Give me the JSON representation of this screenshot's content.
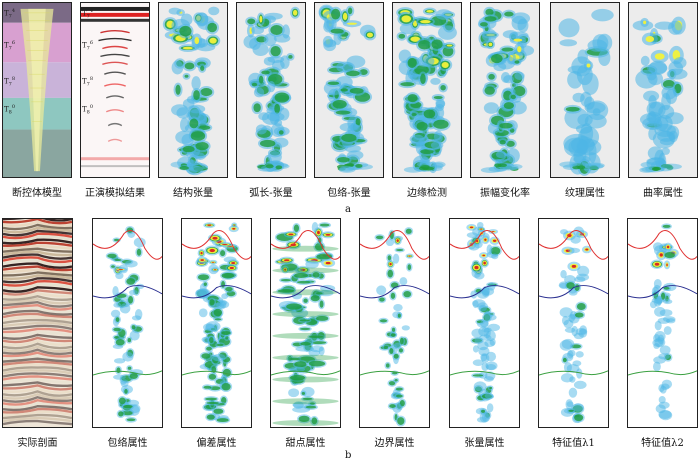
{
  "row_a": {
    "caption": "a",
    "panels": [
      {
        "id": "fault-model",
        "label": "断控体模型"
      },
      {
        "id": "forward-sim",
        "label": "正演模拟结果"
      },
      {
        "id": "structure-tensor",
        "label": "结构张量"
      },
      {
        "id": "arc-tensor",
        "label": "弧长-张量"
      },
      {
        "id": "envelope-tensor",
        "label": "包络-张量"
      },
      {
        "id": "edge-detect",
        "label": "边缘检测"
      },
      {
        "id": "amp-change",
        "label": "振幅变化率"
      },
      {
        "id": "texture",
        "label": "纹理属性"
      },
      {
        "id": "curvature",
        "label": "曲率属性"
      }
    ],
    "horizon_labels": [
      "T74",
      "T76",
      "T78",
      "T80"
    ]
  },
  "row_b": {
    "caption": "b",
    "panels": [
      {
        "id": "real-section",
        "label": "实际剖面"
      },
      {
        "id": "envelope-attr",
        "label": "包络属性"
      },
      {
        "id": "deviation-attr",
        "label": "偏差属性"
      },
      {
        "id": "sweet-attr",
        "label": "甜点属性"
      },
      {
        "id": "boundary-attr",
        "label": "边界属性"
      },
      {
        "id": "tensor-attr",
        "label": "张量属性"
      },
      {
        "id": "eigen1",
        "label": "特征值λ1"
      },
      {
        "id": "eigen2",
        "label": "特征值λ2"
      }
    ]
  },
  "colors": {
    "horizon_red": "#e03030",
    "horizon_blue": "#2a2f90",
    "horizon_green": "#3aa040",
    "attr_cyan": "#4fb7e6",
    "attr_green": "#1e9c3c",
    "attr_yellow": "#f2f23a",
    "attr_red": "#d82020"
  }
}
